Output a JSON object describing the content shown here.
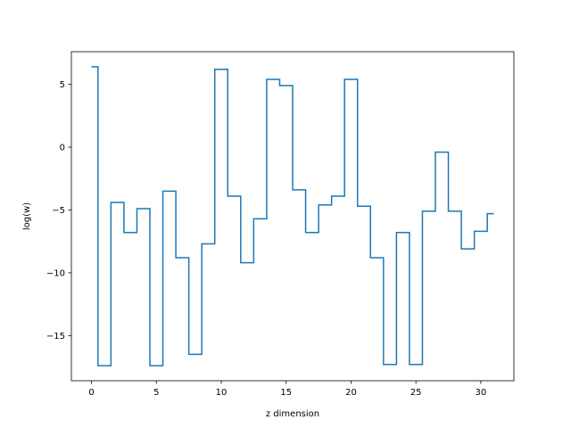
{
  "chart_data": {
    "type": "line",
    "drawstyle": "steps-mid",
    "title": "",
    "xlabel": "z dimension",
    "ylabel": "log(w)",
    "xlim": [
      -1.55,
      32.55
    ],
    "ylim": [
      -18.6,
      7.6
    ],
    "xticks": [
      0,
      5,
      10,
      15,
      20,
      25,
      30
    ],
    "yticks": [
      5,
      0,
      -5,
      -10,
      -15
    ],
    "ytick_labels": [
      "5",
      "0",
      "−5",
      "−10",
      "−15"
    ],
    "grid": false,
    "legend": null,
    "colors": {
      "line": "#1f77b4",
      "axes": "#000000",
      "background": "#ffffff"
    },
    "series": [
      {
        "x": [
          0,
          1,
          2,
          3,
          4,
          5,
          6,
          7,
          8,
          9,
          10,
          11,
          12,
          13,
          14,
          15,
          16,
          17,
          18,
          19,
          20,
          21,
          22,
          23,
          24,
          25,
          26,
          27,
          28,
          29,
          30,
          31
        ],
        "values": [
          6.4,
          -17.4,
          -4.4,
          -6.8,
          -4.9,
          -17.4,
          -3.5,
          -8.8,
          -16.5,
          -7.7,
          6.2,
          -3.9,
          -9.2,
          -5.7,
          5.4,
          4.9,
          -3.4,
          -6.8,
          -4.6,
          -3.9,
          5.4,
          -4.7,
          -8.8,
          -17.3,
          -6.8,
          -17.3,
          -5.1,
          -0.4,
          -5.1,
          -8.1,
          -6.7,
          -5.3
        ]
      }
    ]
  }
}
